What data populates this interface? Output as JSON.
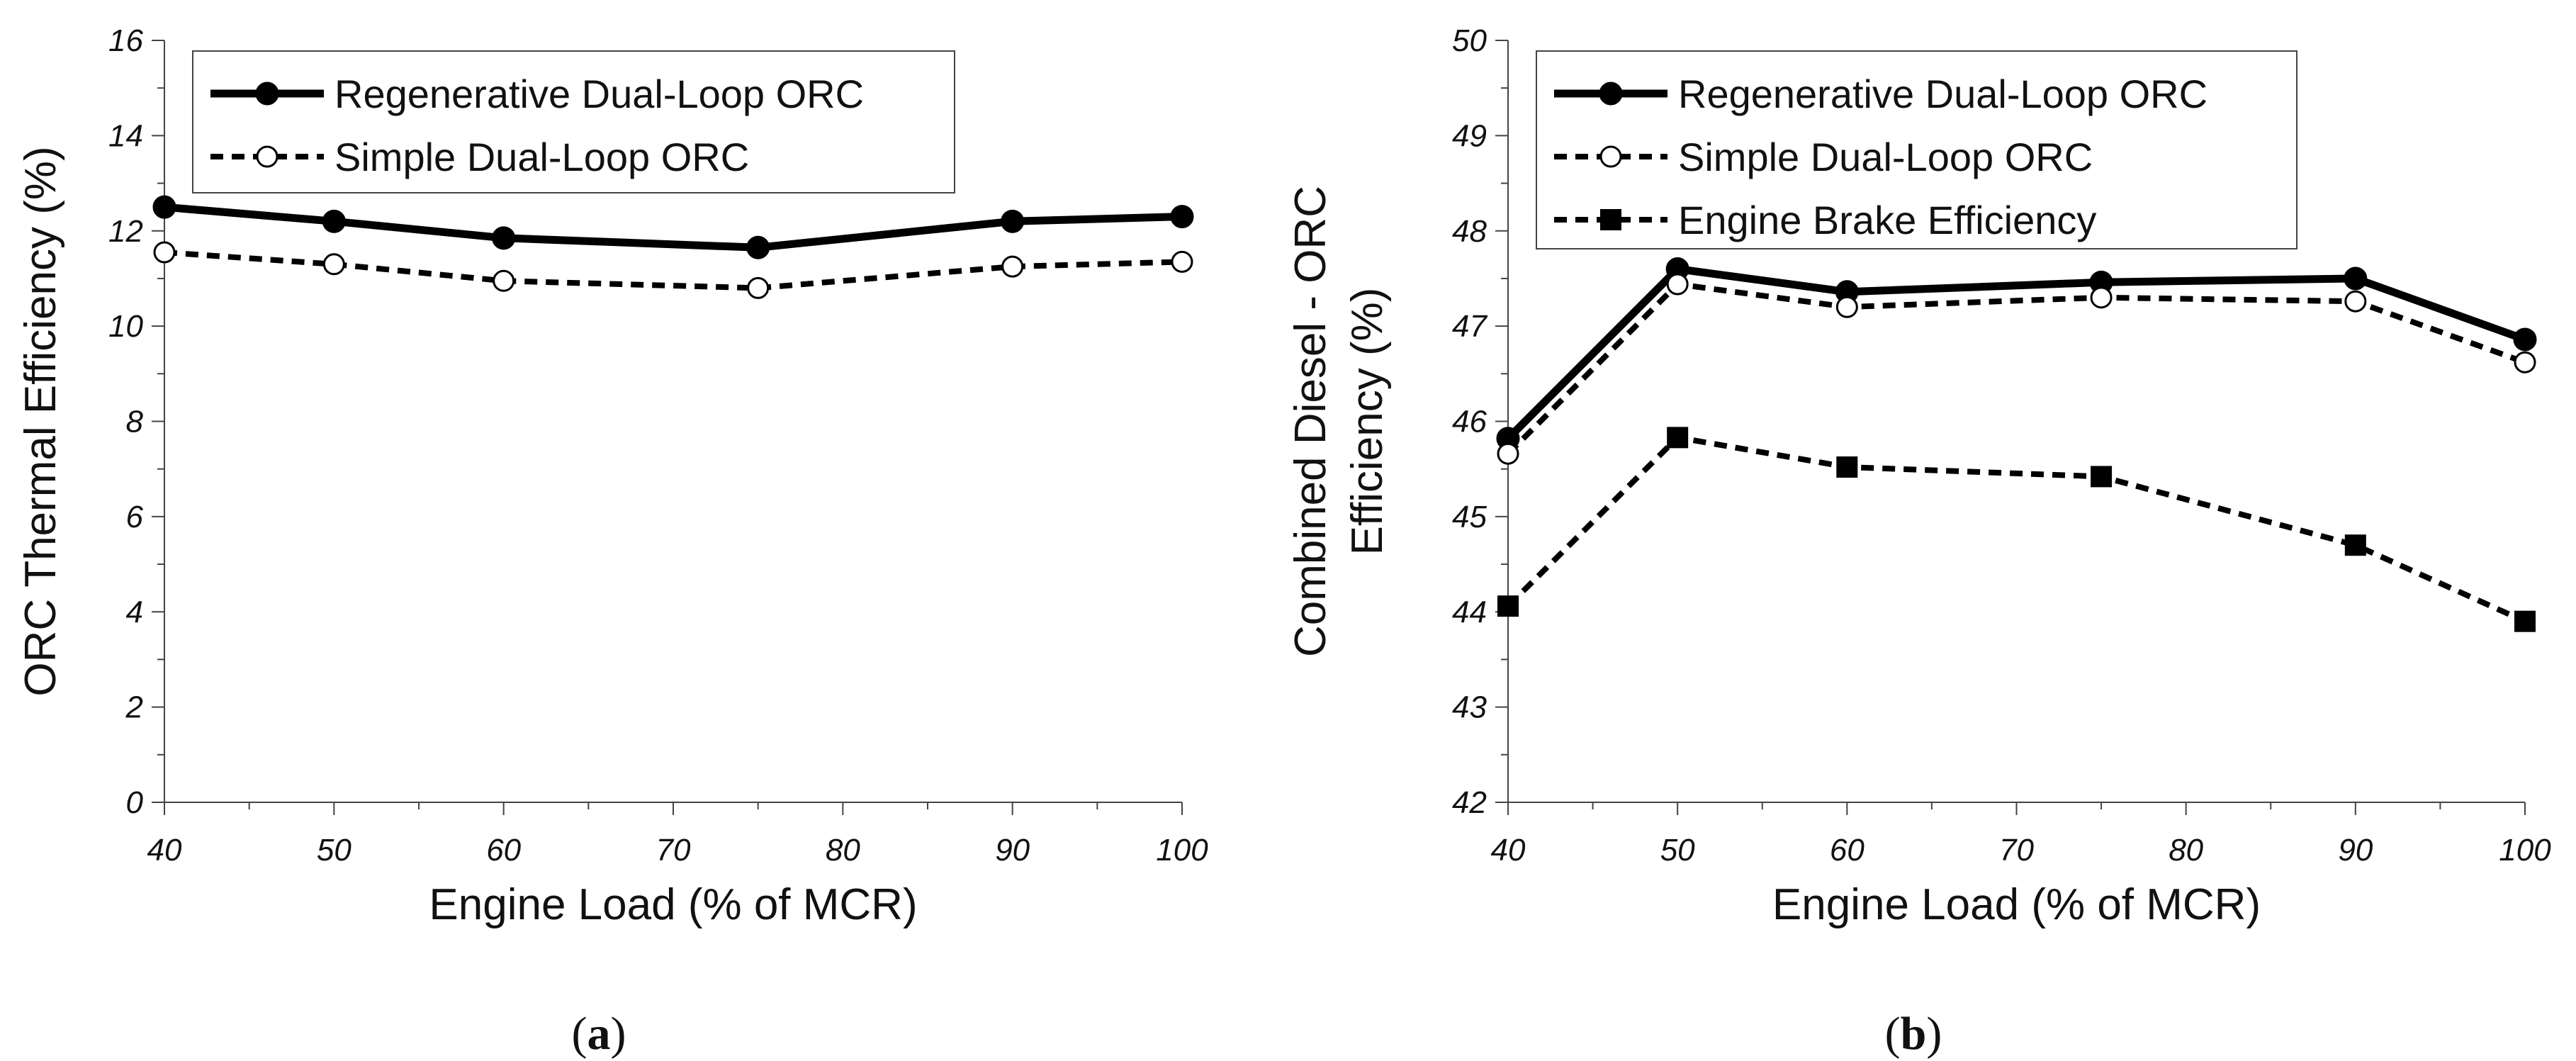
{
  "chart_data": [
    {
      "type": "line",
      "panel": "(a)",
      "panel_letter": "a",
      "title": "",
      "xlabel": "Engine Load (% of MCR)",
      "ylabel": "ORC Thermal Efficiency (%)",
      "xlim": [
        40,
        100
      ],
      "ylim": [
        0,
        16
      ],
      "xticks": [
        40,
        50,
        60,
        70,
        80,
        90,
        100
      ],
      "yticks": [
        0,
        2,
        4,
        6,
        8,
        10,
        12,
        14,
        16
      ],
      "grid": false,
      "legend_position": "top",
      "series": [
        {
          "name": "Regenerative Dual-Loop ORC",
          "style": "solid",
          "marker": "filled-circle",
          "x": [
            40,
            50,
            60,
            75,
            90,
            100
          ],
          "values": [
            12.5,
            12.2,
            11.85,
            11.65,
            12.2,
            12.3
          ]
        },
        {
          "name": "Simple Dual-Loop ORC",
          "style": "dashed",
          "marker": "open-circle",
          "x": [
            40,
            50,
            60,
            75,
            90,
            100
          ],
          "values": [
            11.55,
            11.3,
            10.95,
            10.8,
            11.25,
            11.35
          ]
        }
      ]
    },
    {
      "type": "line",
      "panel": "(b)",
      "panel_letter": "b",
      "title": "",
      "xlabel": "Engine Load (% of MCR)",
      "ylabel_line1": "Combined Diesel - ORC",
      "ylabel_line2": "Efficiency (%)",
      "xlim": [
        40,
        100
      ],
      "ylim": [
        42,
        50
      ],
      "xticks": [
        40,
        50,
        60,
        70,
        80,
        90,
        100
      ],
      "yticks": [
        42,
        43,
        44,
        45,
        46,
        47,
        48,
        49,
        50
      ],
      "grid": false,
      "legend_position": "top-left",
      "series": [
        {
          "name": "Regenerative Dual-Loop ORC",
          "style": "solid",
          "marker": "filled-circle",
          "x": [
            40,
            50,
            60,
            75,
            90,
            100
          ],
          "values": [
            45.82,
            47.6,
            47.36,
            47.46,
            47.5,
            46.86
          ]
        },
        {
          "name": "Simple Dual-Loop ORC",
          "style": "dashed",
          "marker": "open-circle",
          "x": [
            40,
            50,
            60,
            75,
            90,
            100
          ],
          "values": [
            45.66,
            47.44,
            47.2,
            47.3,
            47.26,
            46.62
          ]
        },
        {
          "name": "Engine Brake Efficiency",
          "style": "dashed",
          "marker": "filled-square",
          "x": [
            40,
            50,
            60,
            75,
            90,
            100
          ],
          "values": [
            44.06,
            45.83,
            45.52,
            45.42,
            44.7,
            43.9
          ]
        }
      ]
    }
  ]
}
